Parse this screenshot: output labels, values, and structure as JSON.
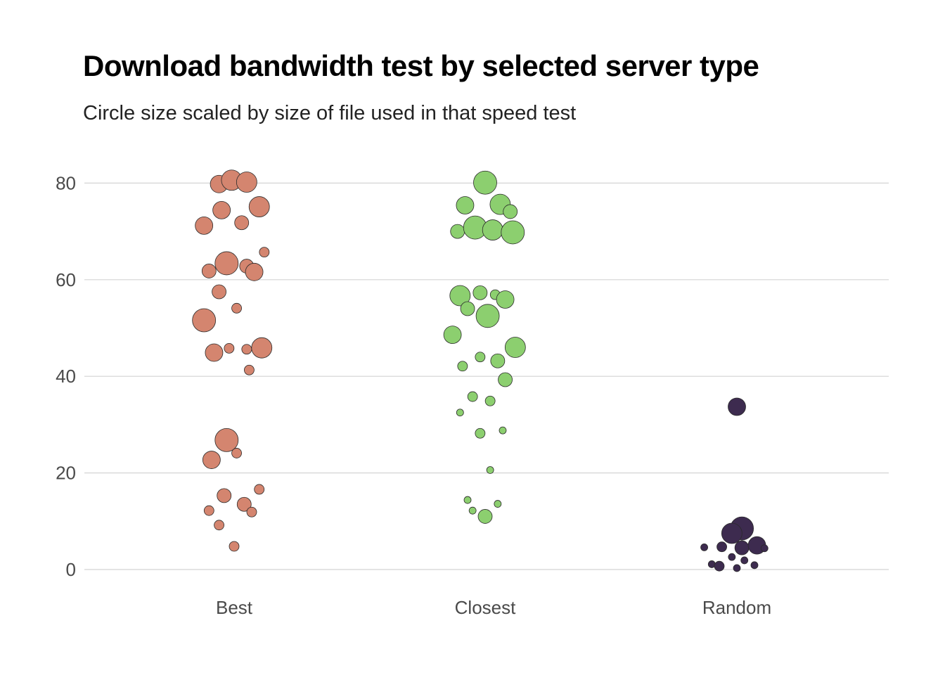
{
  "chart_data": {
    "type": "scatter",
    "title": "Download bandwidth test by selected server type",
    "subtitle": "Circle size scaled by size of file used in that speed test",
    "xlabel": "",
    "ylabel": "",
    "categories": [
      "Best",
      "Closest",
      "Random"
    ],
    "ylim": [
      0,
      85
    ],
    "yticks": [
      0,
      20,
      40,
      60,
      80
    ],
    "grid": "horizontal",
    "colors": {
      "Best": "#d4856f",
      "Closest": "#8ccf6f",
      "Random": "#3d2b4f"
    },
    "series": [
      {
        "category": "Best",
        "points": [
          {
            "x": -0.06,
            "y": 79.8,
            "r": 3
          },
          {
            "x": -0.01,
            "y": 80.6,
            "r": 4
          },
          {
            "x": 0.05,
            "y": 80.2,
            "r": 4
          },
          {
            "x": -0.05,
            "y": 74.4,
            "r": 3
          },
          {
            "x": 0.1,
            "y": 75.1,
            "r": 4
          },
          {
            "x": -0.12,
            "y": 71.2,
            "r": 3
          },
          {
            "x": 0.03,
            "y": 71.8,
            "r": 2
          },
          {
            "x": 0.12,
            "y": 65.7,
            "r": 1
          },
          {
            "x": -0.1,
            "y": 61.8,
            "r": 2
          },
          {
            "x": -0.03,
            "y": 63.4,
            "r": 5
          },
          {
            "x": 0.05,
            "y": 62.8,
            "r": 2
          },
          {
            "x": 0.08,
            "y": 61.6,
            "r": 3
          },
          {
            "x": -0.06,
            "y": 57.5,
            "r": 2
          },
          {
            "x": 0.01,
            "y": 54.1,
            "r": 1
          },
          {
            "x": -0.12,
            "y": 51.6,
            "r": 5
          },
          {
            "x": -0.08,
            "y": 44.9,
            "r": 3
          },
          {
            "x": -0.02,
            "y": 45.8,
            "r": 1
          },
          {
            "x": 0.05,
            "y": 45.6,
            "r": 1
          },
          {
            "x": 0.11,
            "y": 45.9,
            "r": 4
          },
          {
            "x": 0.06,
            "y": 41.3,
            "r": 1
          },
          {
            "x": -0.03,
            "y": 26.8,
            "r": 5
          },
          {
            "x": 0.01,
            "y": 24.1,
            "r": 1
          },
          {
            "x": -0.09,
            "y": 22.7,
            "r": 3
          },
          {
            "x": 0.1,
            "y": 16.6,
            "r": 1
          },
          {
            "x": -0.04,
            "y": 15.3,
            "r": 2
          },
          {
            "x": -0.1,
            "y": 12.2,
            "r": 1
          },
          {
            "x": 0.04,
            "y": 13.5,
            "r": 2
          },
          {
            "x": 0.07,
            "y": 11.9,
            "r": 1
          },
          {
            "x": -0.06,
            "y": 9.2,
            "r": 1
          },
          {
            "x": 0.0,
            "y": 4.8,
            "r": 1
          }
        ]
      },
      {
        "category": "Closest",
        "points": [
          {
            "x": 0.0,
            "y": 80.1,
            "r": 5
          },
          {
            "x": -0.08,
            "y": 75.4,
            "r": 3
          },
          {
            "x": 0.06,
            "y": 75.6,
            "r": 4
          },
          {
            "x": 0.1,
            "y": 74.1,
            "r": 2
          },
          {
            "x": -0.11,
            "y": 70.0,
            "r": 2
          },
          {
            "x": -0.04,
            "y": 70.8,
            "r": 5
          },
          {
            "x": 0.03,
            "y": 70.3,
            "r": 4
          },
          {
            "x": 0.11,
            "y": 69.8,
            "r": 5
          },
          {
            "x": -0.1,
            "y": 56.7,
            "r": 4
          },
          {
            "x": -0.02,
            "y": 57.3,
            "r": 2
          },
          {
            "x": 0.04,
            "y": 56.9,
            "r": 1
          },
          {
            "x": 0.08,
            "y": 55.9,
            "r": 3
          },
          {
            "x": -0.07,
            "y": 54.0,
            "r": 2
          },
          {
            "x": 0.01,
            "y": 52.5,
            "r": 5
          },
          {
            "x": -0.13,
            "y": 48.6,
            "r": 3
          },
          {
            "x": 0.12,
            "y": 46.0,
            "r": 4
          },
          {
            "x": -0.09,
            "y": 42.1,
            "r": 1
          },
          {
            "x": -0.02,
            "y": 44.0,
            "r": 1
          },
          {
            "x": 0.05,
            "y": 43.2,
            "r": 2
          },
          {
            "x": 0.08,
            "y": 39.3,
            "r": 2
          },
          {
            "x": -0.05,
            "y": 35.8,
            "r": 1
          },
          {
            "x": 0.02,
            "y": 34.9,
            "r": 1
          },
          {
            "x": -0.1,
            "y": 32.5,
            "r": 0
          },
          {
            "x": -0.02,
            "y": 28.2,
            "r": 1
          },
          {
            "x": 0.07,
            "y": 28.8,
            "r": 0
          },
          {
            "x": 0.02,
            "y": 20.6,
            "r": 0
          },
          {
            "x": -0.07,
            "y": 14.4,
            "r": 0
          },
          {
            "x": -0.05,
            "y": 12.2,
            "r": 0
          },
          {
            "x": 0.05,
            "y": 13.6,
            "r": 0
          },
          {
            "x": 0.0,
            "y": 11.0,
            "r": 2
          }
        ]
      },
      {
        "category": "Random",
        "points": [
          {
            "x": 0.0,
            "y": 33.7,
            "r": 3
          },
          {
            "x": 0.02,
            "y": 8.5,
            "r": 5
          },
          {
            "x": -0.02,
            "y": 7.5,
            "r": 4
          },
          {
            "x": -0.13,
            "y": 4.6,
            "r": 0
          },
          {
            "x": -0.06,
            "y": 4.7,
            "r": 1
          },
          {
            "x": 0.02,
            "y": 4.5,
            "r": 2
          },
          {
            "x": 0.08,
            "y": 5.0,
            "r": 3
          },
          {
            "x": 0.11,
            "y": 4.4,
            "r": 0
          },
          {
            "x": -0.02,
            "y": 2.6,
            "r": 0
          },
          {
            "x": 0.03,
            "y": 1.9,
            "r": 0
          },
          {
            "x": -0.1,
            "y": 1.1,
            "r": 0
          },
          {
            "x": -0.07,
            "y": 0.7,
            "r": 1
          },
          {
            "x": 0.0,
            "y": 0.3,
            "r": 0
          },
          {
            "x": 0.07,
            "y": 0.9,
            "r": 0
          }
        ]
      }
    ]
  }
}
